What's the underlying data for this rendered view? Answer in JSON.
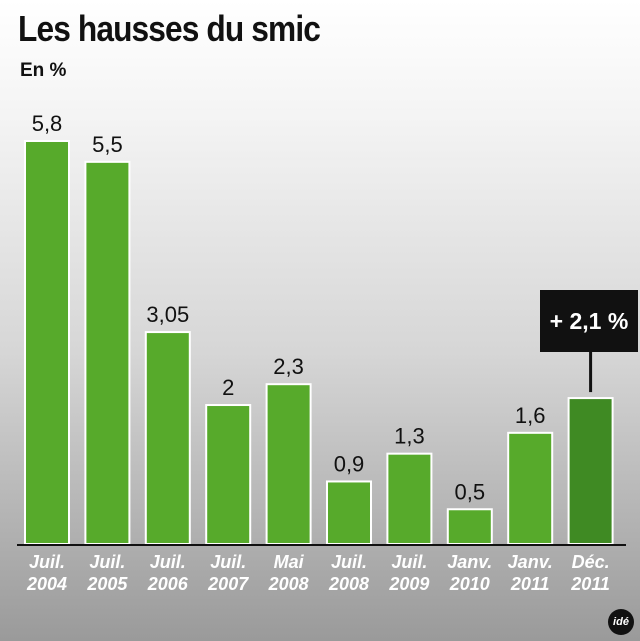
{
  "title": "Les hausses du smic",
  "subtitle": "En %",
  "logo_text": "idé",
  "chart_data": {
    "type": "bar",
    "title": "Les hausses du smic",
    "ylabel": "En %",
    "xlabel": "",
    "categories": [
      [
        "Juil.",
        "2004"
      ],
      [
        "Juil.",
        "2005"
      ],
      [
        "Juil.",
        "2006"
      ],
      [
        "Juil.",
        "2007"
      ],
      [
        "Mai",
        "2008"
      ],
      [
        "Juil.",
        "2008"
      ],
      [
        "Juil.",
        "2009"
      ],
      [
        "Janv.",
        "2010"
      ],
      [
        "Janv.",
        "2011"
      ],
      [
        "Déc.",
        "2011"
      ]
    ],
    "values": [
      5.8,
      5.5,
      3.05,
      2,
      2.3,
      0.9,
      1.3,
      0.5,
      1.6,
      2.1
    ],
    "value_labels": [
      "5,8",
      "5,5",
      "3,05",
      "2",
      "2,3",
      "0,9",
      "1,3",
      "0,5",
      "1,6",
      ""
    ],
    "ylim": [
      0,
      5.8
    ],
    "grid": false,
    "colors": {
      "bar": "#57aa2b",
      "highlight": "#3f8a23",
      "bar_border": "#ffffff",
      "axis": "#111111",
      "callout_bg": "#111111"
    },
    "callout": {
      "index": 9,
      "text": "+ 2,1 %"
    }
  }
}
